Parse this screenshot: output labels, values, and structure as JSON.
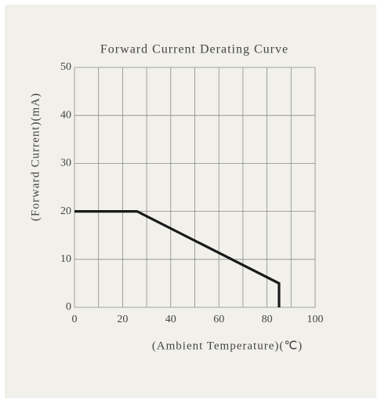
{
  "chart_data": {
    "type": "line",
    "title": "Forward Current Derating Curve",
    "xlabel": "(Ambient Temperature)(℃)",
    "ylabel": "(Forward Current)(mA)",
    "x": [
      0,
      26,
      85,
      85
    ],
    "series": [
      {
        "name": "Forward Current",
        "color": "#1a1a1a",
        "values": [
          20,
          20,
          5,
          0
        ]
      }
    ],
    "xlim": [
      0,
      100
    ],
    "ylim": [
      0,
      50
    ],
    "xticks": [
      0,
      20,
      40,
      60,
      80,
      100
    ],
    "x_minor_grid": [
      10,
      30,
      50,
      70,
      90
    ],
    "yticks": [
      0,
      10,
      20,
      30,
      40,
      50
    ],
    "grid": true
  }
}
